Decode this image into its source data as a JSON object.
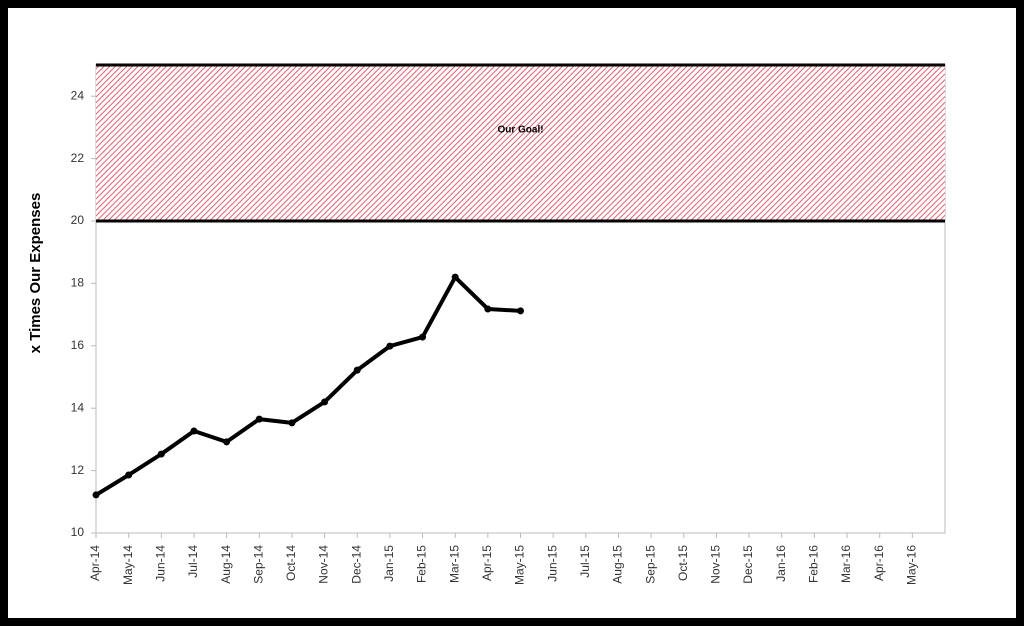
{
  "chart_data": {
    "type": "line",
    "y_label": "x Times Our Expenses",
    "categories": [
      "Apr-14",
      "May-14",
      "Jun-14",
      "Jul-14",
      "Aug-14",
      "Sep-14",
      "Oct-14",
      "Nov-14",
      "Dec-14",
      "Jan-15",
      "Feb-15",
      "Mar-15",
      "Apr-15",
      "May-15",
      "Jun-15",
      "Jul-15",
      "Aug-15",
      "Sep-15",
      "Oct-15",
      "Nov-15",
      "Dec-15",
      "Jan-16",
      "Feb-16",
      "Mar-16",
      "Apr-16",
      "May-16"
    ],
    "series": [
      {
        "color": "#000000",
        "values": [
          11.22,
          11.86,
          12.53,
          13.27,
          12.92,
          13.65,
          13.53,
          14.2,
          15.22,
          15.99,
          16.28,
          18.2,
          17.18,
          17.12,
          null,
          null,
          null,
          null,
          null,
          null,
          null,
          null,
          null,
          null,
          null,
          null
        ]
      }
    ],
    "ylim": [
      10,
      25
    ],
    "yticks": [
      10,
      12,
      14,
      16,
      18,
      20,
      22,
      24
    ],
    "annotations": [
      {
        "text": "Our Goal!",
        "y_range": [
          20,
          25
        ],
        "color": "#e06070"
      }
    ]
  }
}
